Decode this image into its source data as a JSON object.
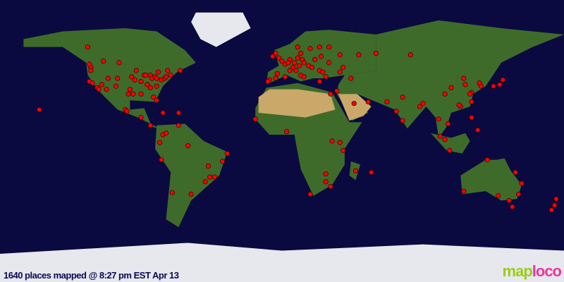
{
  "caption": "1640 places mapped @ 8:27 pm EST Apr 13",
  "logo": {
    "part1": "map",
    "part2": "loco"
  },
  "colors": {
    "ocean": "#0a0a40",
    "land": "#3f6b2a",
    "desert": "#c9a86a",
    "ice": "#e6e8ee",
    "marker": "#ff0000"
  },
  "projection": "equirectangular",
  "markers": [
    [
      -122,
      47
    ],
    [
      -122,
      45
    ],
    [
      -123,
      38
    ],
    [
      -121,
      37
    ],
    [
      -118,
      34
    ],
    [
      -117,
      33
    ],
    [
      -112,
      33
    ],
    [
      -111,
      40
    ],
    [
      -105,
      40
    ],
    [
      -97,
      33
    ],
    [
      -95,
      30
    ],
    [
      -98,
      30
    ],
    [
      -96,
      41
    ],
    [
      -94,
      39
    ],
    [
      -90,
      38
    ],
    [
      -88,
      42
    ],
    [
      -87,
      42
    ],
    [
      -84,
      42
    ],
    [
      -83,
      40
    ],
    [
      -81,
      41
    ],
    [
      -80,
      40
    ],
    [
      -77,
      39
    ],
    [
      -75,
      40
    ],
    [
      -74,
      41
    ],
    [
      -71,
      42
    ],
    [
      -73,
      45
    ],
    [
      -79,
      44
    ],
    [
      -80,
      35
    ],
    [
      -84,
      34
    ],
    [
      -82,
      28
    ],
    [
      -80,
      26
    ],
    [
      -86,
      36
    ],
    [
      -90,
      30
    ],
    [
      -93,
      45
    ],
    [
      -106,
      35
    ],
    [
      -115,
      36
    ],
    [
      -104,
      50
    ],
    [
      -114,
      51
    ],
    [
      -123,
      49
    ],
    [
      -100,
      20
    ],
    [
      -99,
      19
    ],
    [
      -90,
      15
    ],
    [
      -84,
      10
    ],
    [
      -76,
      4
    ],
    [
      -74,
      5
    ],
    [
      -78,
      -1
    ],
    [
      -77,
      -12
    ],
    [
      -70,
      -33
    ],
    [
      -58,
      -34
    ],
    [
      -46,
      -23
    ],
    [
      -43,
      -23
    ],
    [
      -49,
      -26
    ],
    [
      -47,
      -16
    ],
    [
      -38,
      -13
    ],
    [
      -35,
      -8
    ],
    [
      -60,
      -3
    ],
    [
      -66,
      10
    ],
    [
      -155,
      20
    ],
    [
      -66,
      18
    ],
    [
      -76,
      18
    ],
    [
      -124,
      60
    ],
    [
      -65,
      45
    ],
    [
      -8,
      39
    ],
    [
      -9,
      38
    ],
    [
      -4,
      40
    ],
    [
      2,
      41
    ],
    [
      -3,
      43
    ],
    [
      -6,
      54
    ],
    [
      0,
      51
    ],
    [
      -2,
      53
    ],
    [
      -4,
      56
    ],
    [
      2,
      49
    ],
    [
      5,
      45
    ],
    [
      7,
      47
    ],
    [
      8,
      50
    ],
    [
      10,
      53
    ],
    [
      13,
      52
    ],
    [
      11,
      48
    ],
    [
      14,
      50
    ],
    [
      17,
      48
    ],
    [
      19,
      47
    ],
    [
      21,
      52
    ],
    [
      12,
      42
    ],
    [
      9,
      45
    ],
    [
      14,
      41
    ],
    [
      24,
      38
    ],
    [
      28,
      41
    ],
    [
      24,
      45
    ],
    [
      26,
      44
    ],
    [
      30,
      50
    ],
    [
      37,
      55
    ],
    [
      30,
      60
    ],
    [
      24,
      60
    ],
    [
      18,
      59
    ],
    [
      10,
      60
    ],
    [
      12,
      56
    ],
    [
      5,
      52
    ],
    [
      4,
      50
    ],
    [
      25,
      54
    ],
    [
      39,
      47
    ],
    [
      44,
      40
    ],
    [
      35,
      32
    ],
    [
      31,
      30
    ],
    [
      46,
      24
    ],
    [
      55,
      25
    ],
    [
      67,
      25
    ],
    [
      73,
      19
    ],
    [
      77,
      13
    ],
    [
      77,
      28
    ],
    [
      88,
      22
    ],
    [
      90,
      24
    ],
    [
      100,
      14
    ],
    [
      101,
      3
    ],
    [
      104,
      1
    ],
    [
      107,
      -6
    ],
    [
      106,
      11
    ],
    [
      114,
      22
    ],
    [
      113,
      23
    ],
    [
      121,
      31
    ],
    [
      116,
      40
    ],
    [
      117,
      36
    ],
    [
      120,
      30
    ],
    [
      104,
      30
    ],
    [
      108,
      34
    ],
    [
      126,
      37
    ],
    [
      127,
      35
    ],
    [
      135,
      35
    ],
    [
      139,
      36
    ],
    [
      141,
      39
    ],
    [
      121,
      25
    ],
    [
      121,
      15
    ],
    [
      125,
      7
    ],
    [
      82,
      55
    ],
    [
      60,
      56
    ],
    [
      49,
      55
    ],
    [
      37,
      44
    ],
    [
      -17,
      14
    ],
    [
      3,
      6
    ],
    [
      37,
      -1
    ],
    [
      39,
      -6
    ],
    [
      32,
      0
    ],
    [
      28,
      -26
    ],
    [
      31,
      -29
    ],
    [
      18,
      -34
    ],
    [
      28,
      -21
    ],
    [
      47,
      -19
    ],
    [
      57,
      -20
    ],
    [
      116,
      -32
    ],
    [
      138,
      -35
    ],
    [
      145,
      -38
    ],
    [
      151,
      -34
    ],
    [
      153,
      -27
    ],
    [
      147,
      -42
    ],
    [
      149,
      -20
    ],
    [
      131,
      -12
    ],
    [
      175,
      -37
    ],
    [
      172,
      -44
    ],
    [
      174,
      -41
    ]
  ]
}
